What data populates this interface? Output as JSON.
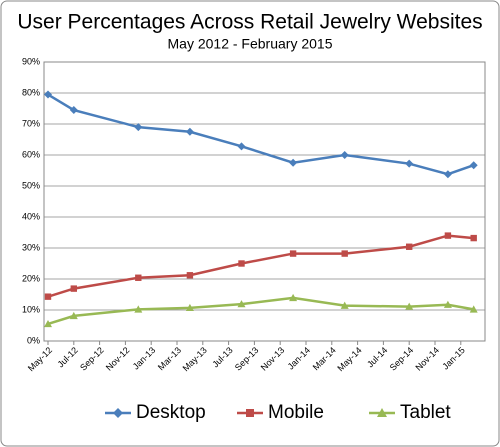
{
  "chart_data": {
    "type": "line",
    "title": "User Percentages Across Retail Jewelry Websites",
    "subtitle": "May 2012 - February 2015",
    "x": [
      "2012-05",
      "2012-07",
      "2012-12",
      "2013-04",
      "2013-08",
      "2013-12",
      "2014-04",
      "2014-09",
      "2014-12",
      "2015-02"
    ],
    "series": [
      {
        "name": "Desktop",
        "color": "#4a7ebb",
        "marker": "diamond",
        "values": [
          79.5,
          74.5,
          69,
          67.5,
          62.8,
          57.5,
          60,
          57.2,
          53.8,
          56.7
        ]
      },
      {
        "name": "Mobile",
        "color": "#be4b48",
        "marker": "square",
        "values": [
          14.3,
          16.9,
          20.4,
          21.2,
          25,
          28.2,
          28.2,
          30.4,
          34,
          33.2
        ]
      },
      {
        "name": "Tablet",
        "color": "#98b954",
        "marker": "triangle",
        "values": [
          5.5,
          8.1,
          10.2,
          10.7,
          11.9,
          13.9,
          11.4,
          11.1,
          11.7,
          10.2
        ]
      }
    ],
    "xticks": [
      {
        "value": "2012-05",
        "label": "May-12"
      },
      {
        "value": "2012-07",
        "label": "Jul-12"
      },
      {
        "value": "2012-09",
        "label": "Sep-12"
      },
      {
        "value": "2012-11",
        "label": "Nov-12"
      },
      {
        "value": "2013-01",
        "label": "Jan-13"
      },
      {
        "value": "2013-03",
        "label": "Mar-13"
      },
      {
        "value": "2013-05",
        "label": "May-13"
      },
      {
        "value": "2013-07",
        "label": "Jul-13"
      },
      {
        "value": "2013-09",
        "label": "Sep-13"
      },
      {
        "value": "2013-11",
        "label": "Nov-13"
      },
      {
        "value": "2014-01",
        "label": "Jan-14"
      },
      {
        "value": "2014-03",
        "label": "Mar-14"
      },
      {
        "value": "2014-05",
        "label": "May-14"
      },
      {
        "value": "2014-07",
        "label": "Jul-14"
      },
      {
        "value": "2014-09",
        "label": "Sep-14"
      },
      {
        "value": "2014-11",
        "label": "Nov-14"
      },
      {
        "value": "2015-01",
        "label": "Jan-15"
      }
    ],
    "ylim": [
      0,
      90
    ],
    "yticks": [
      {
        "value": 0,
        "label": "0%"
      },
      {
        "value": 10,
        "label": "10%"
      },
      {
        "value": 20,
        "label": "20%"
      },
      {
        "value": 30,
        "label": "30%"
      },
      {
        "value": 40,
        "label": "40%"
      },
      {
        "value": 50,
        "label": "50%"
      },
      {
        "value": 60,
        "label": "60%"
      },
      {
        "value": 70,
        "label": "70%"
      },
      {
        "value": 80,
        "label": "80%"
      },
      {
        "value": 90,
        "label": "90%"
      }
    ],
    "grid": true,
    "legend": "bottom"
  }
}
